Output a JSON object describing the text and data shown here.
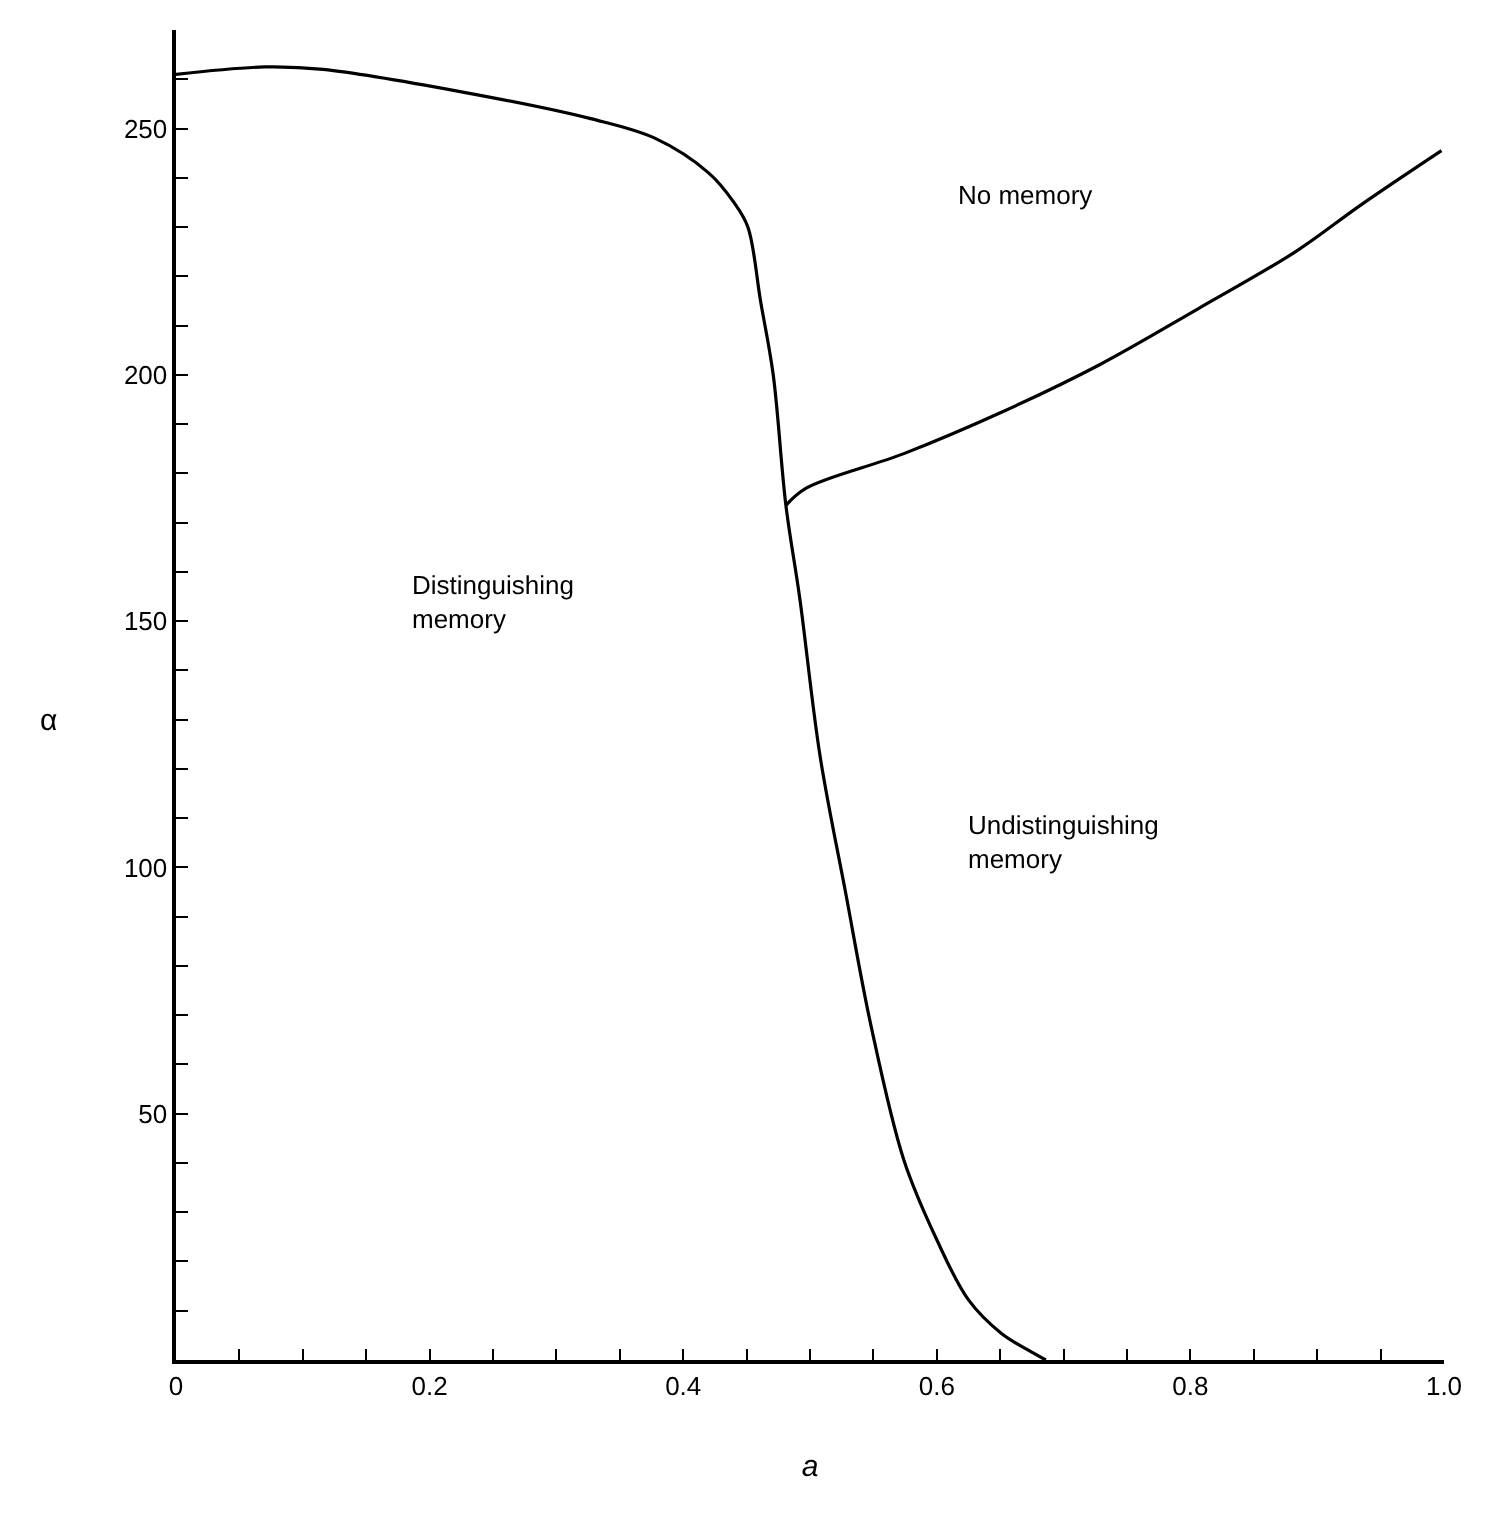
{
  "chart_data": {
    "type": "line",
    "xlabel": "a",
    "ylabel": "α",
    "series": [
      {
        "color": "#000000",
        "x": [
          0,
          0.07,
          0.116,
          0.224,
          0.327,
          0.378,
          0.42,
          0.44,
          0.451,
          0.461,
          0.471,
          0.481,
          0.492,
          0.508,
          0.528,
          0.548,
          0.574,
          0.6,
          0.625,
          0.651,
          0.677,
          0.686
        ],
        "values": [
          261,
          262.5,
          262,
          257.5,
          252,
          248,
          241,
          235,
          230,
          215,
          200,
          173.5,
          154.5,
          122.5,
          95,
          68,
          40.6,
          24.4,
          12.2,
          5.4,
          1.3,
          0
        ]
      },
      {
        "color": "#000000",
        "x": [
          0.481,
          0.497,
          0.574,
          0.651,
          0.728,
          0.806,
          0.883,
          0.934,
          0.998
        ],
        "values": [
          173.5,
          177,
          184,
          192.4,
          202,
          213.4,
          225,
          234.4,
          245.5
        ]
      }
    ],
    "annotations": [
      "No memory",
      "Distinguishing\nmemory",
      "Undistinguishing\nmemory"
    ],
    "xlim": [
      0,
      1.0
    ],
    "ylim": [
      0,
      270
    ],
    "xticks": [
      {
        "value": 0,
        "label": "0"
      },
      {
        "value": 0.05,
        "label": null
      },
      {
        "value": 0.1,
        "label": null
      },
      {
        "value": 0.15,
        "label": null
      },
      0.2,
      {
        "value": 0.25,
        "label": null
      },
      {
        "value": 0.3,
        "label": null
      },
      {
        "value": 0.35,
        "label": null
      },
      0.4,
      {
        "value": 0.45,
        "label": null
      },
      {
        "value": 0.5,
        "label": null
      },
      {
        "value": 0.55,
        "label": null
      },
      0.6,
      {
        "value": 0.65,
        "label": null
      },
      {
        "value": 0.7,
        "label": null
      },
      {
        "value": 0.75,
        "label": null
      },
      0.8,
      {
        "value": 0.85,
        "label": null
      },
      {
        "value": 0.9,
        "label": null
      },
      {
        "value": 0.95,
        "label": null
      },
      {
        "value": 1.0,
        "label": "1.0"
      }
    ],
    "yticks": [
      {
        "value": 10,
        "label": null
      },
      {
        "value": 20,
        "label": null
      },
      {
        "value": 30,
        "label": null
      },
      {
        "value": 40,
        "label": null
      },
      50,
      {
        "value": 60,
        "label": null
      },
      {
        "value": 70,
        "label": null
      },
      {
        "value": 80,
        "label": null
      },
      {
        "value": 90,
        "label": null
      },
      100,
      {
        "value": 110,
        "label": null
      },
      {
        "value": 120,
        "label": null
      },
      {
        "value": 130,
        "label": null
      },
      {
        "value": 140,
        "label": null
      },
      150,
      {
        "value": 160,
        "label": null
      },
      {
        "value": 170,
        "label": null
      },
      {
        "value": 180,
        "label": null
      },
      {
        "value": 190,
        "label": null
      },
      200,
      {
        "value": 210,
        "label": null
      },
      {
        "value": 220,
        "label": null
      },
      {
        "value": 230,
        "label": null
      },
      {
        "value": 240,
        "label": null
      },
      250,
      {
        "value": 260,
        "label": null
      }
    ],
    "marker": "none",
    "line_style": "solid"
  }
}
